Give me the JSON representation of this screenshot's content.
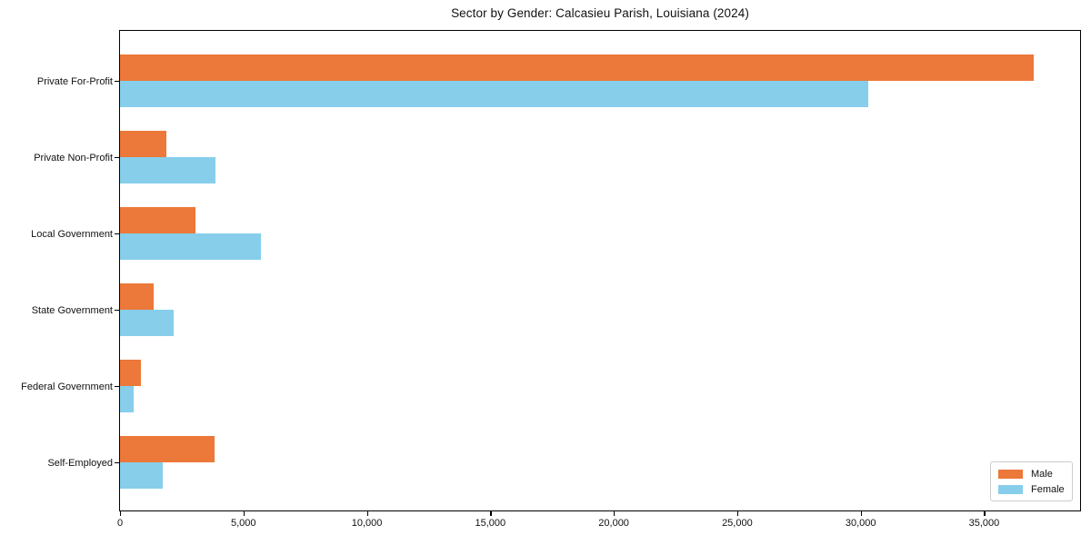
{
  "chart_data": {
    "type": "bar",
    "orientation": "horizontal",
    "title": "Sector by Gender: Calcasieu Parish, Louisiana (2024)",
    "categories": [
      "Private For-Profit",
      "Private Non-Profit",
      "Local Government",
      "State Government",
      "Federal Government",
      "Self-Employed"
    ],
    "series": [
      {
        "name": "Male",
        "color": "#ec7839",
        "values": [
          37000,
          1880,
          3060,
          1360,
          850,
          3830
        ]
      },
      {
        "name": "Female",
        "color": "#87ceeb",
        "values": [
          30300,
          3870,
          5710,
          2170,
          550,
          1730
        ]
      }
    ],
    "xlabel": "",
    "ylabel": "",
    "xlim": [
      0,
      38850
    ],
    "x_ticks": [
      0,
      5000,
      10000,
      15000,
      20000,
      25000,
      30000,
      35000
    ],
    "x_tick_labels": [
      "0",
      "5,000",
      "10,000",
      "15,000",
      "20,000",
      "25,000",
      "30,000",
      "35,000"
    ],
    "legend": {
      "position": "lower right",
      "entries": [
        "Male",
        "Female"
      ]
    },
    "grid": false,
    "background_color": "#ffffff",
    "frame_color": "#000000"
  }
}
